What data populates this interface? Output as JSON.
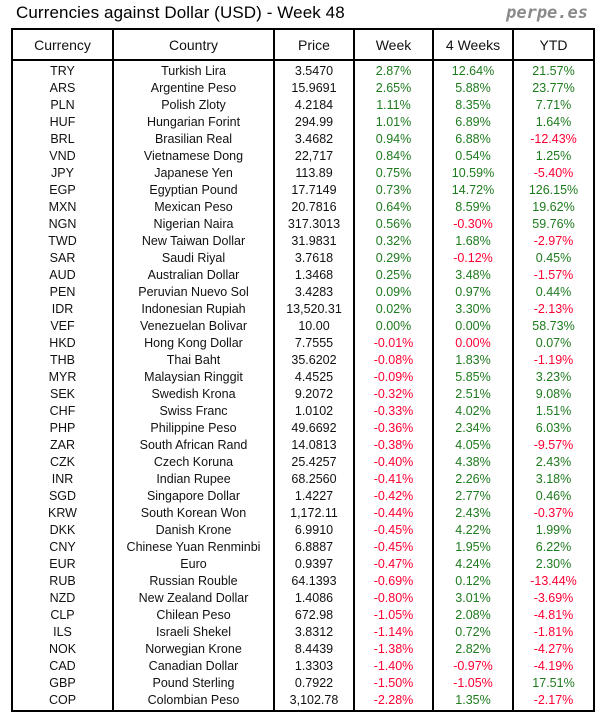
{
  "title": "Currencies against Dollar (USD) - Week 48",
  "brand": "perpe.es",
  "colors": {
    "up": "#1e7b1e",
    "down": "#ff0033",
    "text": "#111111"
  },
  "columns": [
    "Currency",
    "Country",
    "Price",
    "Week",
    "4 Weeks",
    "YTD"
  ],
  "rows": [
    {
      "currency": "TRY",
      "country": "Turkish Lira",
      "price": "3.5470",
      "week": "2.87%",
      "four_weeks": "12.64%",
      "ytd": "21.57%"
    },
    {
      "currency": "ARS",
      "country": "Argentine Peso",
      "price": "15.9691",
      "week": "2.65%",
      "four_weeks": "5.88%",
      "ytd": "23.77%"
    },
    {
      "currency": "PLN",
      "country": "Polish Zloty",
      "price": "4.2184",
      "week": "1.11%",
      "four_weeks": "8.35%",
      "ytd": "7.71%"
    },
    {
      "currency": "HUF",
      "country": "Hungarian Forint",
      "price": "294.99",
      "week": "1.01%",
      "four_weeks": "6.89%",
      "ytd": "1.64%"
    },
    {
      "currency": "BRL",
      "country": "Brasilian Real",
      "price": "3.4682",
      "week": "0.94%",
      "four_weeks": "6.88%",
      "ytd": "-12.43%"
    },
    {
      "currency": "VND",
      "country": "Vietnamese Dong",
      "price": "22,717",
      "week": "0.84%",
      "four_weeks": "0.54%",
      "ytd": "1.25%"
    },
    {
      "currency": "JPY",
      "country": "Japanese Yen",
      "price": "113.89",
      "week": "0.75%",
      "four_weeks": "10.59%",
      "ytd": "-5.40%"
    },
    {
      "currency": "EGP",
      "country": "Egyptian Pound",
      "price": "17.7149",
      "week": "0.73%",
      "four_weeks": "14.72%",
      "ytd": "126.15%"
    },
    {
      "currency": "MXN",
      "country": "Mexican Peso",
      "price": "20.7816",
      "week": "0.64%",
      "four_weeks": "8.59%",
      "ytd": "19.62%"
    },
    {
      "currency": "NGN",
      "country": "Nigerian Naira",
      "price": "317.3013",
      "week": "0.56%",
      "four_weeks": "-0.30%",
      "ytd": "59.76%"
    },
    {
      "currency": "TWD",
      "country": "New Taiwan Dollar",
      "price": "31.9831",
      "week": "0.32%",
      "four_weeks": "1.68%",
      "ytd": "-2.97%"
    },
    {
      "currency": "SAR",
      "country": "Saudi Riyal",
      "price": "3.7618",
      "week": "0.29%",
      "four_weeks": "-0.12%",
      "ytd": "0.45%"
    },
    {
      "currency": "AUD",
      "country": "Australian Dollar",
      "price": "1.3468",
      "week": "0.25%",
      "four_weeks": "3.48%",
      "ytd": "-1.57%"
    },
    {
      "currency": "PEN",
      "country": "Peruvian Nuevo Sol",
      "price": "3.4283",
      "week": "0.09%",
      "four_weeks": "0.97%",
      "ytd": "0.44%"
    },
    {
      "currency": "IDR",
      "country": "Indonesian Rupiah",
      "price": "13,520.31",
      "week": "0.02%",
      "four_weeks": "3.30%",
      "ytd": "-2.13%"
    },
    {
      "currency": "VEF",
      "country": "Venezuelan Bolivar",
      "price": "10.00",
      "week": "0.00%",
      "four_weeks": "0.00%",
      "ytd": "58.73%"
    },
    {
      "currency": "HKD",
      "country": "Hong Kong Dollar",
      "price": "7.7555",
      "week": "-0.01%",
      "four_weeks": "0.00%",
      "four_weeks_trend": "down",
      "ytd": "0.07%"
    },
    {
      "currency": "THB",
      "country": "Thai Baht",
      "price": "35.6202",
      "week": "-0.08%",
      "four_weeks": "1.83%",
      "ytd": "-1.19%"
    },
    {
      "currency": "MYR",
      "country": "Malaysian Ringgit",
      "price": "4.4525",
      "week": "-0.09%",
      "four_weeks": "5.85%",
      "ytd": "3.23%"
    },
    {
      "currency": "SEK",
      "country": "Swedish Krona",
      "price": "9.2072",
      "week": "-0.32%",
      "four_weeks": "2.51%",
      "ytd": "9.08%"
    },
    {
      "currency": "CHF",
      "country": "Swiss Franc",
      "price": "1.0102",
      "week": "-0.33%",
      "four_weeks": "4.02%",
      "ytd": "1.51%"
    },
    {
      "currency": "PHP",
      "country": "Philippine Peso",
      "price": "49.6692",
      "week": "-0.36%",
      "four_weeks": "2.34%",
      "ytd": "6.03%"
    },
    {
      "currency": "ZAR",
      "country": "South African Rand",
      "price": "14.0813",
      "week": "-0.38%",
      "four_weeks": "4.05%",
      "ytd": "-9.57%"
    },
    {
      "currency": "CZK",
      "country": "Czech Koruna",
      "price": "25.4257",
      "week": "-0.40%",
      "four_weeks": "4.38%",
      "ytd": "2.43%"
    },
    {
      "currency": "INR",
      "country": "Indian Rupee",
      "price": "68.2560",
      "week": "-0.41%",
      "four_weeks": "2.26%",
      "ytd": "3.18%"
    },
    {
      "currency": "SGD",
      "country": "Singapore Dollar",
      "price": "1.4227",
      "week": "-0.42%",
      "four_weeks": "2.77%",
      "ytd": "0.46%"
    },
    {
      "currency": "KRW",
      "country": "South Korean Won",
      "price": "1,172.11",
      "week": "-0.44%",
      "four_weeks": "2.43%",
      "ytd": "-0.37%"
    },
    {
      "currency": "DKK",
      "country": "Danish Krone",
      "price": "6.9910",
      "week": "-0.45%",
      "four_weeks": "4.22%",
      "ytd": "1.99%"
    },
    {
      "currency": "CNY",
      "country": "Chinese Yuan Renminbi",
      "price": "6.8887",
      "week": "-0.45%",
      "four_weeks": "1.95%",
      "ytd": "6.22%"
    },
    {
      "currency": "EUR",
      "country": "Euro",
      "price": "0.9397",
      "week": "-0.47%",
      "four_weeks": "4.24%",
      "ytd": "2.30%"
    },
    {
      "currency": "RUB",
      "country": "Russian Rouble",
      "price": "64.1393",
      "week": "-0.69%",
      "four_weeks": "0.12%",
      "ytd": "-13.44%"
    },
    {
      "currency": "NZD",
      "country": "New Zealand Dollar",
      "price": "1.4086",
      "week": "-0.80%",
      "four_weeks": "3.01%",
      "ytd": "-3.69%"
    },
    {
      "currency": "CLP",
      "country": "Chilean Peso",
      "price": "672.98",
      "week": "-1.05%",
      "four_weeks": "2.08%",
      "ytd": "-4.81%"
    },
    {
      "currency": "ILS",
      "country": "Israeli Shekel",
      "price": "3.8312",
      "week": "-1.14%",
      "four_weeks": "0.72%",
      "ytd": "-1.81%"
    },
    {
      "currency": "NOK",
      "country": "Norwegian Krone",
      "price": "8.4439",
      "week": "-1.38%",
      "four_weeks": "2.82%",
      "ytd": "-4.27%"
    },
    {
      "currency": "CAD",
      "country": "Canadian Dollar",
      "price": "1.3303",
      "week": "-1.40%",
      "four_weeks": "-0.97%",
      "ytd": "-4.19%"
    },
    {
      "currency": "GBP",
      "country": "Pound Sterling",
      "price": "0.7922",
      "week": "-1.50%",
      "four_weeks": "-1.05%",
      "ytd": "17.51%"
    },
    {
      "currency": "COP",
      "country": "Colombian Peso",
      "price": "3,102.78",
      "week": "-2.28%",
      "four_weeks": "1.35%",
      "ytd": "-2.17%"
    }
  ]
}
